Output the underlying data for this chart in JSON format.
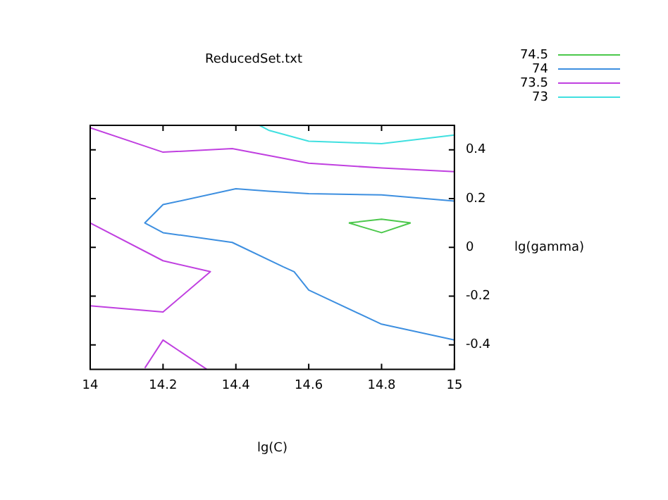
{
  "chart_data": {
    "type": "line",
    "title": "ReducedSet.txt",
    "xlabel": "lg(C)",
    "ylabel": "lg(gamma)",
    "xlim": [
      14,
      15
    ],
    "ylim": [
      -0.5,
      0.5
    ],
    "xticks": [
      14,
      14.2,
      14.4,
      14.6,
      14.8,
      15
    ],
    "yticks": [
      -0.4,
      -0.2,
      0,
      0.2,
      0.4
    ],
    "grid": false,
    "legend": "top right",
    "marker": "none",
    "series": [
      {
        "name": "74.5",
        "color": "#4cc84c",
        "x": [
          14.71,
          14.8,
          14.88,
          null,
          14.71,
          14.8,
          14.88
        ],
        "values": [
          0.1,
          0.115,
          0.1,
          null,
          0.1,
          0.06,
          0.1
        ]
      },
      {
        "name": "74",
        "color": "#3d8fe0",
        "x": [
          15,
          14.8,
          14.6,
          14.49,
          14.4,
          14.2,
          14.15,
          14.2,
          14.39,
          14.53,
          14.56,
          14.6,
          14.8,
          15
        ],
        "values": [
          0.19,
          0.215,
          0.22,
          0.23,
          0.24,
          0.175,
          0.1,
          0.06,
          0.02,
          -0.08,
          -0.1,
          -0.175,
          -0.315,
          -0.38
        ]
      },
      {
        "name": "73.5",
        "color": "#c040e0",
        "x": [
          14,
          14.2,
          14.39,
          14.53,
          14.6,
          14.8,
          15,
          null,
          14,
          14.2,
          14.33,
          14.2,
          14,
          null,
          14.15,
          14.2,
          14.32
        ],
        "values": [
          0.49,
          0.39,
          0.405,
          0.365,
          0.345,
          0.325,
          0.31,
          null,
          0.1,
          -0.055,
          -0.1,
          -0.265,
          -0.24,
          null,
          -0.495,
          -0.38,
          -0.5
        ]
      },
      {
        "name": "73",
        "color": "#40e0e0",
        "x": [
          14.465,
          14.49,
          14.6,
          14.8,
          15
        ],
        "values": [
          0.5,
          0.48,
          0.435,
          0.425,
          0.46
        ]
      }
    ]
  }
}
